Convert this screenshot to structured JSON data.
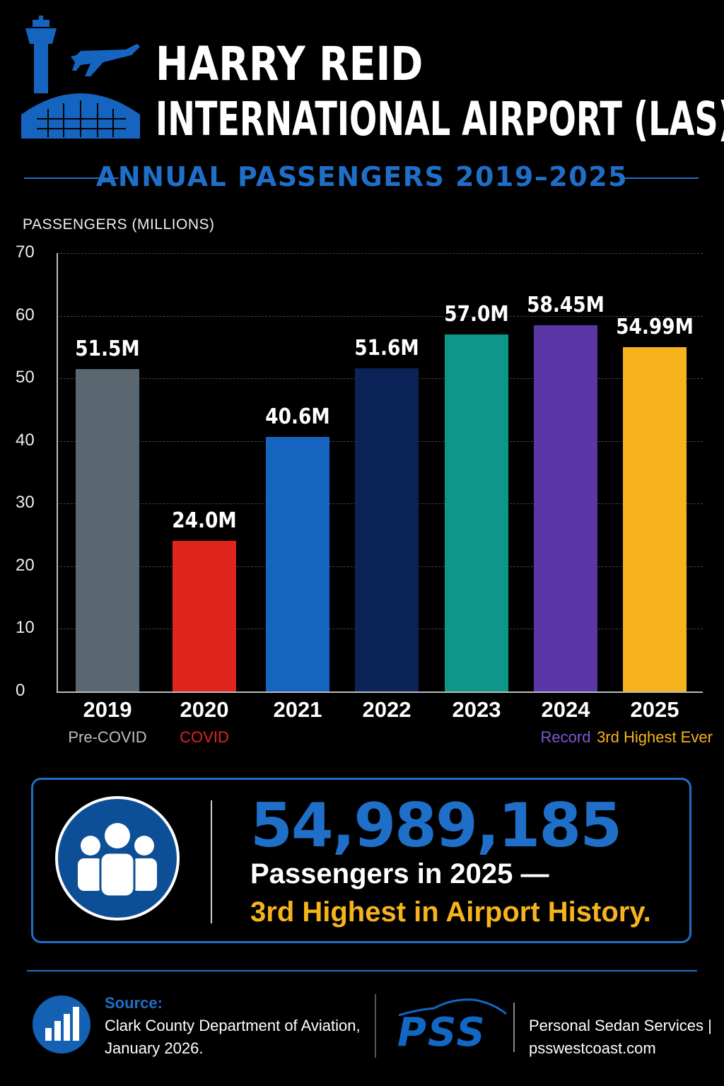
{
  "header": {
    "title_line1": "HARRY REID",
    "title_line2": "INTERNATIONAL AIRPORT (LAS)",
    "subtitle": "ANNUAL PASSENGERS 2019–2025",
    "logo_icon": "airport-tower-plane-icon"
  },
  "chart_data": {
    "type": "bar",
    "title": "ANNUAL PASSENGERS 2019–2025",
    "ylabel": "PASSENGERS (MILLIONS)",
    "xlabel": "",
    "ylim": [
      0,
      70
    ],
    "yticks": [
      0,
      10,
      20,
      30,
      40,
      50,
      60,
      70
    ],
    "grid": true,
    "categories": [
      "2019",
      "2020",
      "2021",
      "2022",
      "2023",
      "2024",
      "2025"
    ],
    "values": [
      51.5,
      24.0,
      40.6,
      51.6,
      57.0,
      58.45,
      54.99
    ],
    "data_labels": [
      "51.5M",
      "24.0M",
      "40.6M",
      "51.6M",
      "57.0M",
      "58.45M",
      "54.99M"
    ],
    "notes": [
      "Pre-COVID",
      "COVID",
      "",
      "",
      "",
      "Record",
      "3rd Highest Ever"
    ],
    "colors": [
      "#5b6770",
      "#e0251f",
      "#1565c0",
      "#0b2356",
      "#0e9688",
      "#5b36a6",
      "#f6b31c"
    ],
    "note_colors": [
      "#b8c0c6",
      "#e0251f",
      "#ffffff",
      "#ffffff",
      "#ffffff",
      "#7e57d1",
      "#f6b31c"
    ]
  },
  "callout": {
    "icon": "people-group-icon",
    "number": "54,989,185",
    "line1": "Passengers in 2025 —",
    "line2": "3rd Highest in Airport History."
  },
  "footer": {
    "source_icon": "bar-chart-icon",
    "source_title": "Source:",
    "source_line1": "Clark County Department of Aviation,",
    "source_line2": "January 2026.",
    "brand_logo_text": "PSS",
    "brand_name": "Personal Sedan Services |",
    "brand_url": "psswestcoast.com"
  },
  "colors": {
    "accent_blue": "#1f6fc8",
    "highlight_yellow": "#f6b31c"
  }
}
